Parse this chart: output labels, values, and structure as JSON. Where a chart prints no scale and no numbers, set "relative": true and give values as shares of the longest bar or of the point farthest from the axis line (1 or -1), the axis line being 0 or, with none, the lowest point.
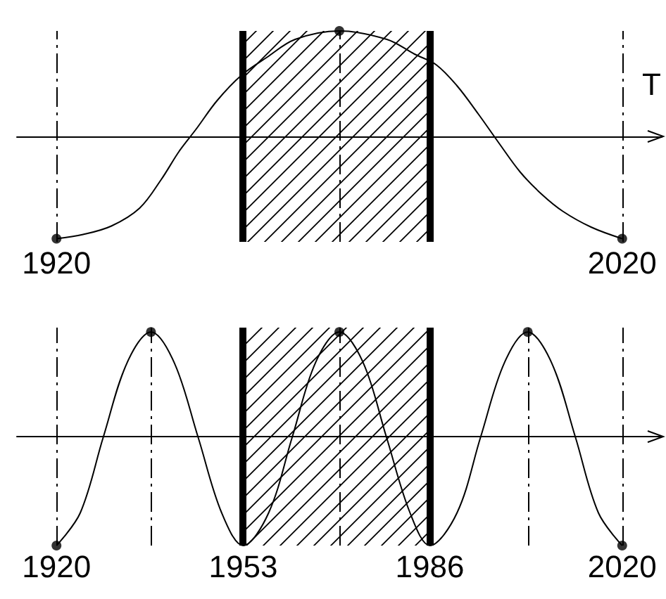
{
  "chart_data": [
    {
      "type": "line",
      "relative": true,
      "xlabel": "T",
      "xlim": [
        1913,
        2027
      ],
      "xticks": [
        1920,
        2020
      ],
      "tick_labels": "x",
      "grid": false,
      "marker": "none",
      "line_style": "solid",
      "series": [
        {
          "color": "#000000",
          "x": [
            1920,
            1924.7,
            1929.7,
            1934.7,
            1938.5,
            1941.7,
            1944.7,
            1948.4,
            1952.7,
            1957.2,
            1962.2,
            1970,
            1978.4,
            1983.3,
            1987.1,
            1990.8,
            1994.6,
            1998.3,
            2002,
            2005.8,
            2009.5,
            2014.5,
            2020
          ],
          "values": [
            -0.97,
            -0.93,
            -0.85,
            -0.68,
            -0.41,
            -0.14,
            0.07,
            0.34,
            0.58,
            0.75,
            0.92,
            1,
            0.92,
            0.78,
            0.68,
            0.48,
            0.21,
            -0.07,
            -0.34,
            -0.55,
            -0.71,
            -0.86,
            -0.97
          ]
        },
        {
          "type": "scatter",
          "marker": "circle",
          "color": "#000000",
          "x": [
            1920,
            1970,
            2020
          ],
          "values": [
            -0.97,
            1,
            -0.97
          ]
        }
      ],
      "bands": [
        {
          "axis": "x",
          "from": 1953,
          "to": 1986,
          "color": "#000000"
        }
      ],
      "ref_lines": [
        {
          "axis": "x",
          "value": 1953,
          "color": "#000000",
          "line_style": "solid"
        },
        {
          "axis": "x",
          "value": 1986,
          "color": "#000000",
          "line_style": "solid"
        },
        {
          "axis": "x",
          "value": 1920,
          "color": "#000000",
          "line_style": "dashed"
        },
        {
          "axis": "x",
          "value": 1970,
          "color": "#000000",
          "line_style": "dashed"
        },
        {
          "axis": "x",
          "value": 2020,
          "color": "#000000",
          "line_style": "dashed"
        }
      ]
    },
    {
      "type": "line",
      "relative": true,
      "xlim": [
        1913,
        2027
      ],
      "xticks": [
        1920,
        1953,
        1986,
        2020
      ],
      "tick_labels": "x",
      "grid": false,
      "marker": "none",
      "line_style": "solid",
      "series": [
        {
          "color": "#000000",
          "x": [
            1920,
            1924.2,
            1928.3,
            1932.5,
            1936.7,
            1940.8,
            1945,
            1949.2,
            1953,
            1957.5,
            1961.7,
            1965.8,
            1970,
            1974.2,
            1978.3,
            1982.5,
            1986,
            1990.8,
            1995,
            1999.2,
            2003.3,
            2007.5,
            2011.7,
            2015.8,
            2020
          ],
          "values": [
            -1,
            -0.7,
            0,
            0.68,
            0.96,
            0.68,
            0,
            -0.7,
            -1,
            -0.7,
            0,
            0.68,
            0.96,
            0.68,
            0,
            -0.7,
            -1,
            -0.7,
            0,
            0.68,
            0.96,
            0.68,
            0,
            -0.7,
            -1
          ]
        },
        {
          "type": "scatter",
          "marker": "circle",
          "color": "#000000",
          "x": [
            1920,
            1936.7,
            1970,
            2003.3,
            2020
          ],
          "values": [
            -1,
            0.96,
            0.96,
            0.96,
            -1
          ]
        }
      ],
      "bands": [
        {
          "axis": "x",
          "from": 1953,
          "to": 1986,
          "color": "#000000"
        }
      ],
      "ref_lines": [
        {
          "axis": "x",
          "value": 1953,
          "color": "#000000",
          "line_style": "solid"
        },
        {
          "axis": "x",
          "value": 1986,
          "color": "#000000",
          "line_style": "solid"
        },
        {
          "axis": "x",
          "value": 1920,
          "color": "#000000",
          "line_style": "dashed"
        },
        {
          "axis": "x",
          "value": 1936.7,
          "color": "#000000",
          "line_style": "dashed"
        },
        {
          "axis": "x",
          "value": 1970,
          "color": "#000000",
          "line_style": "dashed"
        },
        {
          "axis": "x",
          "value": 2003.3,
          "color": "#000000",
          "line_style": "dashed"
        },
        {
          "axis": "x",
          "value": 2020,
          "color": "#000000",
          "line_style": "dashed"
        }
      ]
    }
  ]
}
